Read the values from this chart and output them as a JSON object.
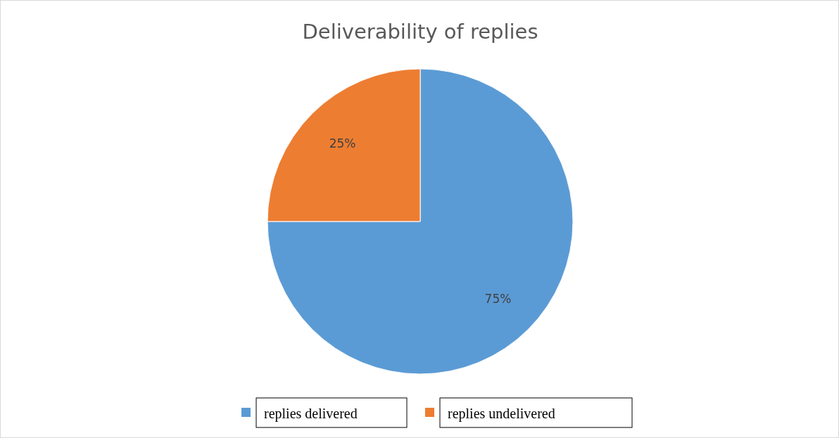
{
  "chart_data": {
    "type": "pie",
    "title": "Deliverability of replies",
    "categories": [
      "replies delivered",
      "replies undelivered"
    ],
    "values": [
      75,
      25
    ],
    "colors": [
      "#5b9bd5",
      "#ed7d31"
    ],
    "value_labels": [
      "75%",
      "25%"
    ],
    "legend": "bottom"
  }
}
